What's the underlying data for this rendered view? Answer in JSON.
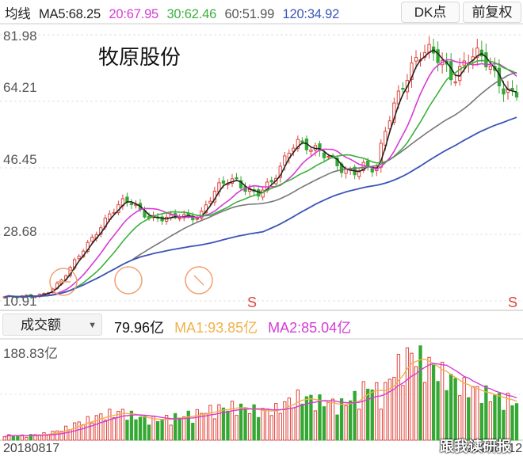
{
  "header": {
    "ma_label": "均线",
    "ma5": "MA5:68.25",
    "ma20": "20:67.95",
    "ma30": "30:62.46",
    "ma60": "60:51.99",
    "ma120": "120:34.92",
    "dk_button": "DK点",
    "fq_button": "前复权"
  },
  "stock_name": "牧原股份",
  "price_axis": {
    "ticks": [
      "81.98",
      "64.21",
      "46.45",
      "28.68",
      "10.91"
    ]
  },
  "signal_marks": [
    "S",
    "S"
  ],
  "volume_panel": {
    "selector": "成交额",
    "value": "79.96亿",
    "ma1": "MA1:93.85亿",
    "ma2": "MA2:85.04亿",
    "max_label": "188.83亿"
  },
  "dates": {
    "start": "20180817",
    "end": "20200612"
  },
  "watermark": "跟我读研报",
  "colors": {
    "up": "#e0443c",
    "down": "#34a832",
    "ma5": "#222222",
    "ma20": "#d63bd6",
    "ma30": "#3cb03c",
    "ma60": "#777777",
    "ma120": "#3a55b8",
    "vol_ma1": "#f0b24a",
    "vol_ma2": "#d63bd6"
  },
  "chart_data": {
    "type": "candlestick",
    "x_range": [
      "20180817",
      "20200612"
    ],
    "ylim": [
      10.91,
      81.98
    ],
    "y_ticks": [
      81.98,
      64.21,
      46.45,
      28.68,
      10.91
    ],
    "ma_series_last": {
      "MA5": 68.25,
      "MA20": 67.95,
      "MA30": 62.46,
      "MA60": 51.99,
      "MA120": 34.92
    },
    "close_path": [
      12,
      11.8,
      11.6,
      12,
      12.3,
      12.8,
      13.5,
      14.5,
      16,
      18,
      21,
      24,
      27,
      30,
      32,
      34,
      35,
      36.5,
      37,
      36,
      35,
      34,
      33,
      32.5,
      32,
      33,
      33.5,
      34,
      35,
      38,
      40,
      41,
      42,
      42.5,
      42,
      41.5,
      40.5,
      41,
      41.5,
      44,
      48,
      53,
      55,
      54,
      52,
      50,
      48,
      47,
      46,
      46.5,
      47,
      48,
      46,
      45,
      53,
      60,
      66,
      72,
      75,
      77,
      76,
      75,
      74,
      73,
      72,
      75,
      77,
      76,
      74,
      72,
      70,
      69,
      68.5,
      68.25
    ],
    "volume_yi": [
      12,
      10,
      11,
      9,
      12,
      13,
      15,
      18,
      22,
      28,
      35,
      40,
      45,
      50,
      55,
      58,
      60,
      62,
      55,
      50,
      48,
      46,
      45,
      48,
      50,
      52,
      55,
      58,
      60,
      65,
      68,
      70,
      72,
      75,
      70,
      68,
      65,
      64,
      66,
      70,
      80,
      90,
      95,
      92,
      88,
      85,
      82,
      80,
      78,
      85,
      95,
      110,
      120,
      110,
      100,
      140,
      160,
      175,
      188.83,
      180,
      170,
      160,
      150,
      140,
      130,
      120,
      115,
      110,
      105,
      100,
      95,
      90,
      88,
      79.96
    ],
    "vol_ma1_last": 93.85,
    "vol_ma2_last": 85.04
  }
}
